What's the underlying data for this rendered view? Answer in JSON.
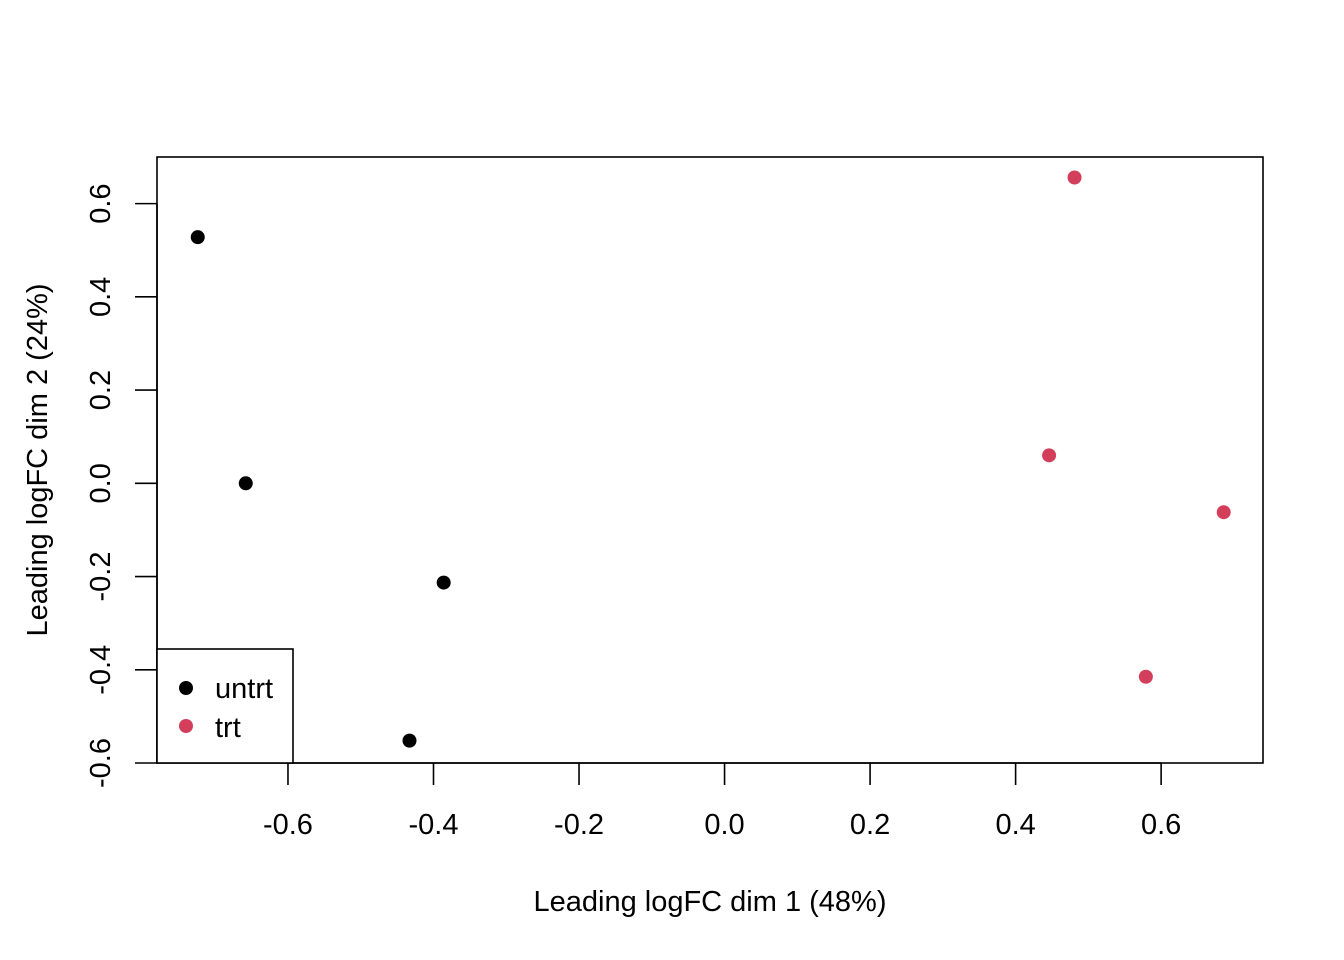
{
  "chart_data": {
    "type": "scatter",
    "title": "",
    "xlabel": "Leading logFC dim 1 (48%)",
    "ylabel": "Leading logFC dim 2 (24%)",
    "xlim": [
      -0.78,
      0.74
    ],
    "ylim": [
      -0.6,
      0.7
    ],
    "x_ticks": [
      -0.6,
      -0.4,
      -0.2,
      0.0,
      0.2,
      0.4,
      0.6
    ],
    "x_tick_labels": [
      "-0.6",
      "-0.4",
      "-0.2",
      "0.0",
      "0.2",
      "0.4",
      "0.6"
    ],
    "y_ticks": [
      -0.6,
      -0.4,
      -0.2,
      0.0,
      0.2,
      0.4,
      0.6
    ],
    "y_tick_labels": [
      "-0.6",
      "-0.4",
      "-0.2",
      "0.0",
      "0.2",
      "0.4",
      "0.6"
    ],
    "grid": false,
    "legend_position": "bottom-left",
    "series": [
      {
        "name": "untrt",
        "color": "#000000",
        "points": [
          {
            "x": -0.724,
            "y": 0.528
          },
          {
            "x": -0.658,
            "y": 0.0
          },
          {
            "x": -0.386,
            "y": -0.213
          },
          {
            "x": -0.433,
            "y": -0.552
          }
        ]
      },
      {
        "name": "trt",
        "color": "#d33f5a",
        "points": [
          {
            "x": 0.481,
            "y": 0.656
          },
          {
            "x": 0.446,
            "y": 0.06
          },
          {
            "x": 0.686,
            "y": -0.062
          },
          {
            "x": 0.579,
            "y": -0.415
          }
        ]
      }
    ]
  }
}
